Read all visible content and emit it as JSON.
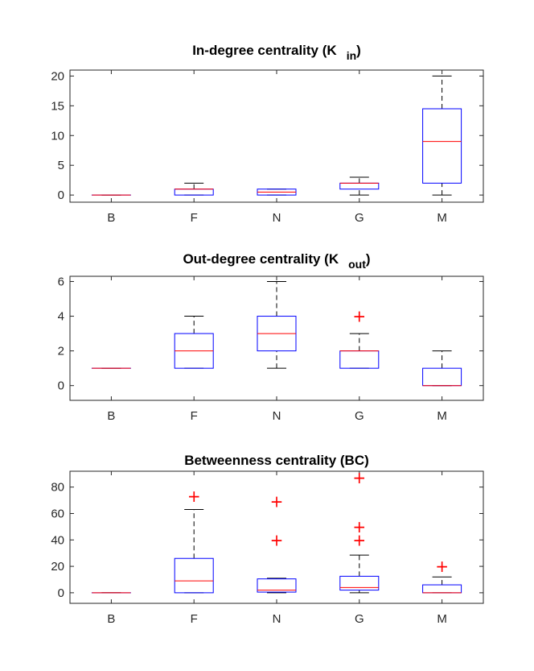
{
  "chart_data": [
    {
      "type": "box",
      "title": "In-degree centrality (K",
      "title_subscript": "in",
      "title_close": ")",
      "categories": [
        "B",
        "F",
        "N",
        "G",
        "M"
      ],
      "ylim": [
        -1.2,
        21
      ],
      "yticks": [
        0,
        5,
        10,
        15,
        20
      ],
      "boxes": [
        {
          "category": "B",
          "lower_whisker": 0,
          "q1": 0,
          "median": 0,
          "q3": 0,
          "upper_whisker": 0,
          "outliers": []
        },
        {
          "category": "F",
          "lower_whisker": 0,
          "q1": 0,
          "median": 1,
          "q3": 1,
          "upper_whisker": 2,
          "outliers": []
        },
        {
          "category": "N",
          "lower_whisker": 0,
          "q1": 0,
          "median": 0.5,
          "q3": 1,
          "upper_whisker": 1,
          "outliers": []
        },
        {
          "category": "G",
          "lower_whisker": 0,
          "q1": 1,
          "median": 2,
          "q3": 2,
          "upper_whisker": 3,
          "outliers": []
        },
        {
          "category": "M",
          "lower_whisker": 0,
          "q1": 2,
          "median": 9,
          "q3": 14.5,
          "upper_whisker": 20,
          "outliers": []
        }
      ]
    },
    {
      "type": "box",
      "title": "Out-degree centrality (K",
      "title_subscript": "out",
      "title_close": ")",
      "categories": [
        "B",
        "F",
        "N",
        "G",
        "M"
      ],
      "ylim": [
        -0.85,
        6.3
      ],
      "yticks": [
        0,
        2,
        4,
        6
      ],
      "boxes": [
        {
          "category": "B",
          "lower_whisker": 1,
          "q1": 1,
          "median": 1,
          "q3": 1,
          "upper_whisker": 1,
          "outliers": []
        },
        {
          "category": "F",
          "lower_whisker": 1,
          "q1": 1,
          "median": 2,
          "q3": 3,
          "upper_whisker": 4,
          "outliers": []
        },
        {
          "category": "N",
          "lower_whisker": 1,
          "q1": 2,
          "median": 3,
          "q3": 4,
          "upper_whisker": 6,
          "outliers": []
        },
        {
          "category": "G",
          "lower_whisker": 1,
          "q1": 1,
          "median": 2,
          "q3": 2,
          "upper_whisker": 3,
          "outliers": [
            4
          ]
        },
        {
          "category": "M",
          "lower_whisker": 0,
          "q1": 0,
          "median": 0,
          "q3": 1,
          "upper_whisker": 2,
          "outliers": []
        }
      ]
    },
    {
      "type": "box",
      "title": "Betweenness centrality (BC)",
      "title_subscript": "",
      "title_close": "",
      "categories": [
        "B",
        "F",
        "N",
        "G",
        "M"
      ],
      "ylim": [
        -8,
        92
      ],
      "yticks": [
        0,
        20,
        40,
        60,
        80
      ],
      "boxes": [
        {
          "category": "B",
          "lower_whisker": 0,
          "q1": 0,
          "median": 0,
          "q3": 0,
          "upper_whisker": 0,
          "outliers": []
        },
        {
          "category": "F",
          "lower_whisker": 0,
          "q1": 0,
          "median": 9,
          "q3": 26,
          "upper_whisker": 63,
          "outliers": [
            73
          ]
        },
        {
          "category": "N",
          "lower_whisker": 0,
          "q1": 0.5,
          "median": 2,
          "q3": 10.5,
          "upper_whisker": 11,
          "outliers": [
            40,
            69
          ]
        },
        {
          "category": "G",
          "lower_whisker": 0,
          "q1": 2,
          "median": 4,
          "q3": 12.5,
          "upper_whisker": 28.5,
          "outliers": [
            40,
            50,
            87
          ]
        },
        {
          "category": "M",
          "lower_whisker": 0,
          "q1": 0,
          "median": 0,
          "q3": 6,
          "upper_whisker": 12,
          "outliers": [
            20
          ]
        }
      ]
    }
  ]
}
